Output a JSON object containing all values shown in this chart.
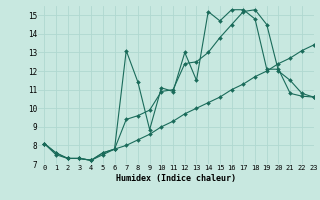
{
  "xlabel": "Humidex (Indice chaleur)",
  "bg_color": "#c8e8e0",
  "grid_color": "#b0d8d0",
  "line_color": "#1a6b5a",
  "xlim": [
    -0.5,
    23
  ],
  "ylim": [
    7,
    15.5
  ],
  "xticks": [
    0,
    1,
    2,
    3,
    4,
    5,
    6,
    7,
    8,
    9,
    10,
    11,
    12,
    13,
    14,
    15,
    16,
    17,
    18,
    19,
    20,
    21,
    22,
    23
  ],
  "yticks": [
    7,
    8,
    9,
    10,
    11,
    12,
    13,
    14,
    15
  ],
  "series": [
    [
      8.1,
      7.5,
      7.3,
      7.3,
      7.2,
      7.5,
      7.8,
      13.1,
      11.4,
      8.85,
      11.1,
      10.9,
      13.0,
      11.5,
      15.2,
      14.7,
      15.3,
      15.3,
      14.8,
      12.1,
      12.1,
      10.8,
      10.65,
      10.6
    ],
    [
      8.1,
      7.6,
      7.3,
      7.3,
      7.2,
      7.6,
      7.8,
      8.0,
      8.3,
      8.6,
      9.0,
      9.3,
      9.7,
      10.0,
      10.3,
      10.6,
      11.0,
      11.3,
      11.7,
      12.0,
      12.4,
      12.7,
      13.1,
      13.4
    ],
    [
      8.1,
      7.6,
      7.3,
      7.3,
      7.2,
      7.6,
      7.8,
      9.4,
      9.6,
      9.9,
      10.9,
      11.0,
      12.4,
      12.5,
      13.0,
      13.8,
      14.5,
      15.2,
      15.3,
      14.5,
      12.0,
      11.5,
      10.8,
      10.6
    ]
  ]
}
